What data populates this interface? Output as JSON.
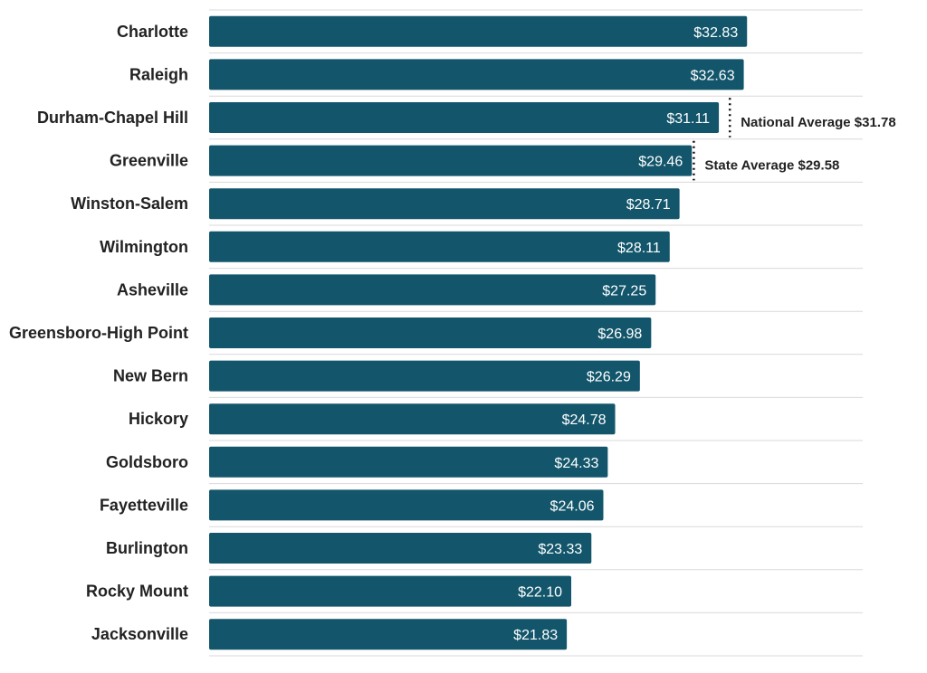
{
  "chart_data": {
    "type": "bar",
    "orientation": "horizontal",
    "categories": [
      "Charlotte",
      "Raleigh",
      "Durham-Chapel Hill",
      "Greenville",
      "Winston-Salem",
      "Wilmington",
      "Asheville",
      "Greensboro-High Point",
      "New Bern",
      "Hickory",
      "Goldsboro",
      "Fayetteville",
      "Burlington",
      "Rocky Mount",
      "Jacksonville"
    ],
    "values": [
      32.83,
      32.63,
      31.11,
      29.46,
      28.71,
      28.11,
      27.25,
      26.98,
      26.29,
      24.78,
      24.33,
      24.06,
      23.33,
      22.1,
      21.83
    ],
    "value_labels": [
      "$32.83",
      "$32.63",
      "$31.11",
      "$29.46",
      "$28.71",
      "$28.11",
      "$27.25",
      "$26.98",
      "$26.29",
      "$24.78",
      "$24.33",
      "$24.06",
      "$23.33",
      "$22.10",
      "$21.83"
    ],
    "xlim": [
      0,
      40
    ],
    "bar_color": "#13566b",
    "grid": "horizontal",
    "reference_lines": [
      {
        "label": "National Average $31.78",
        "value": 31.78,
        "style": "dotted"
      },
      {
        "label": "State Average $29.58",
        "value": 29.58,
        "style": "dotted"
      }
    ]
  }
}
